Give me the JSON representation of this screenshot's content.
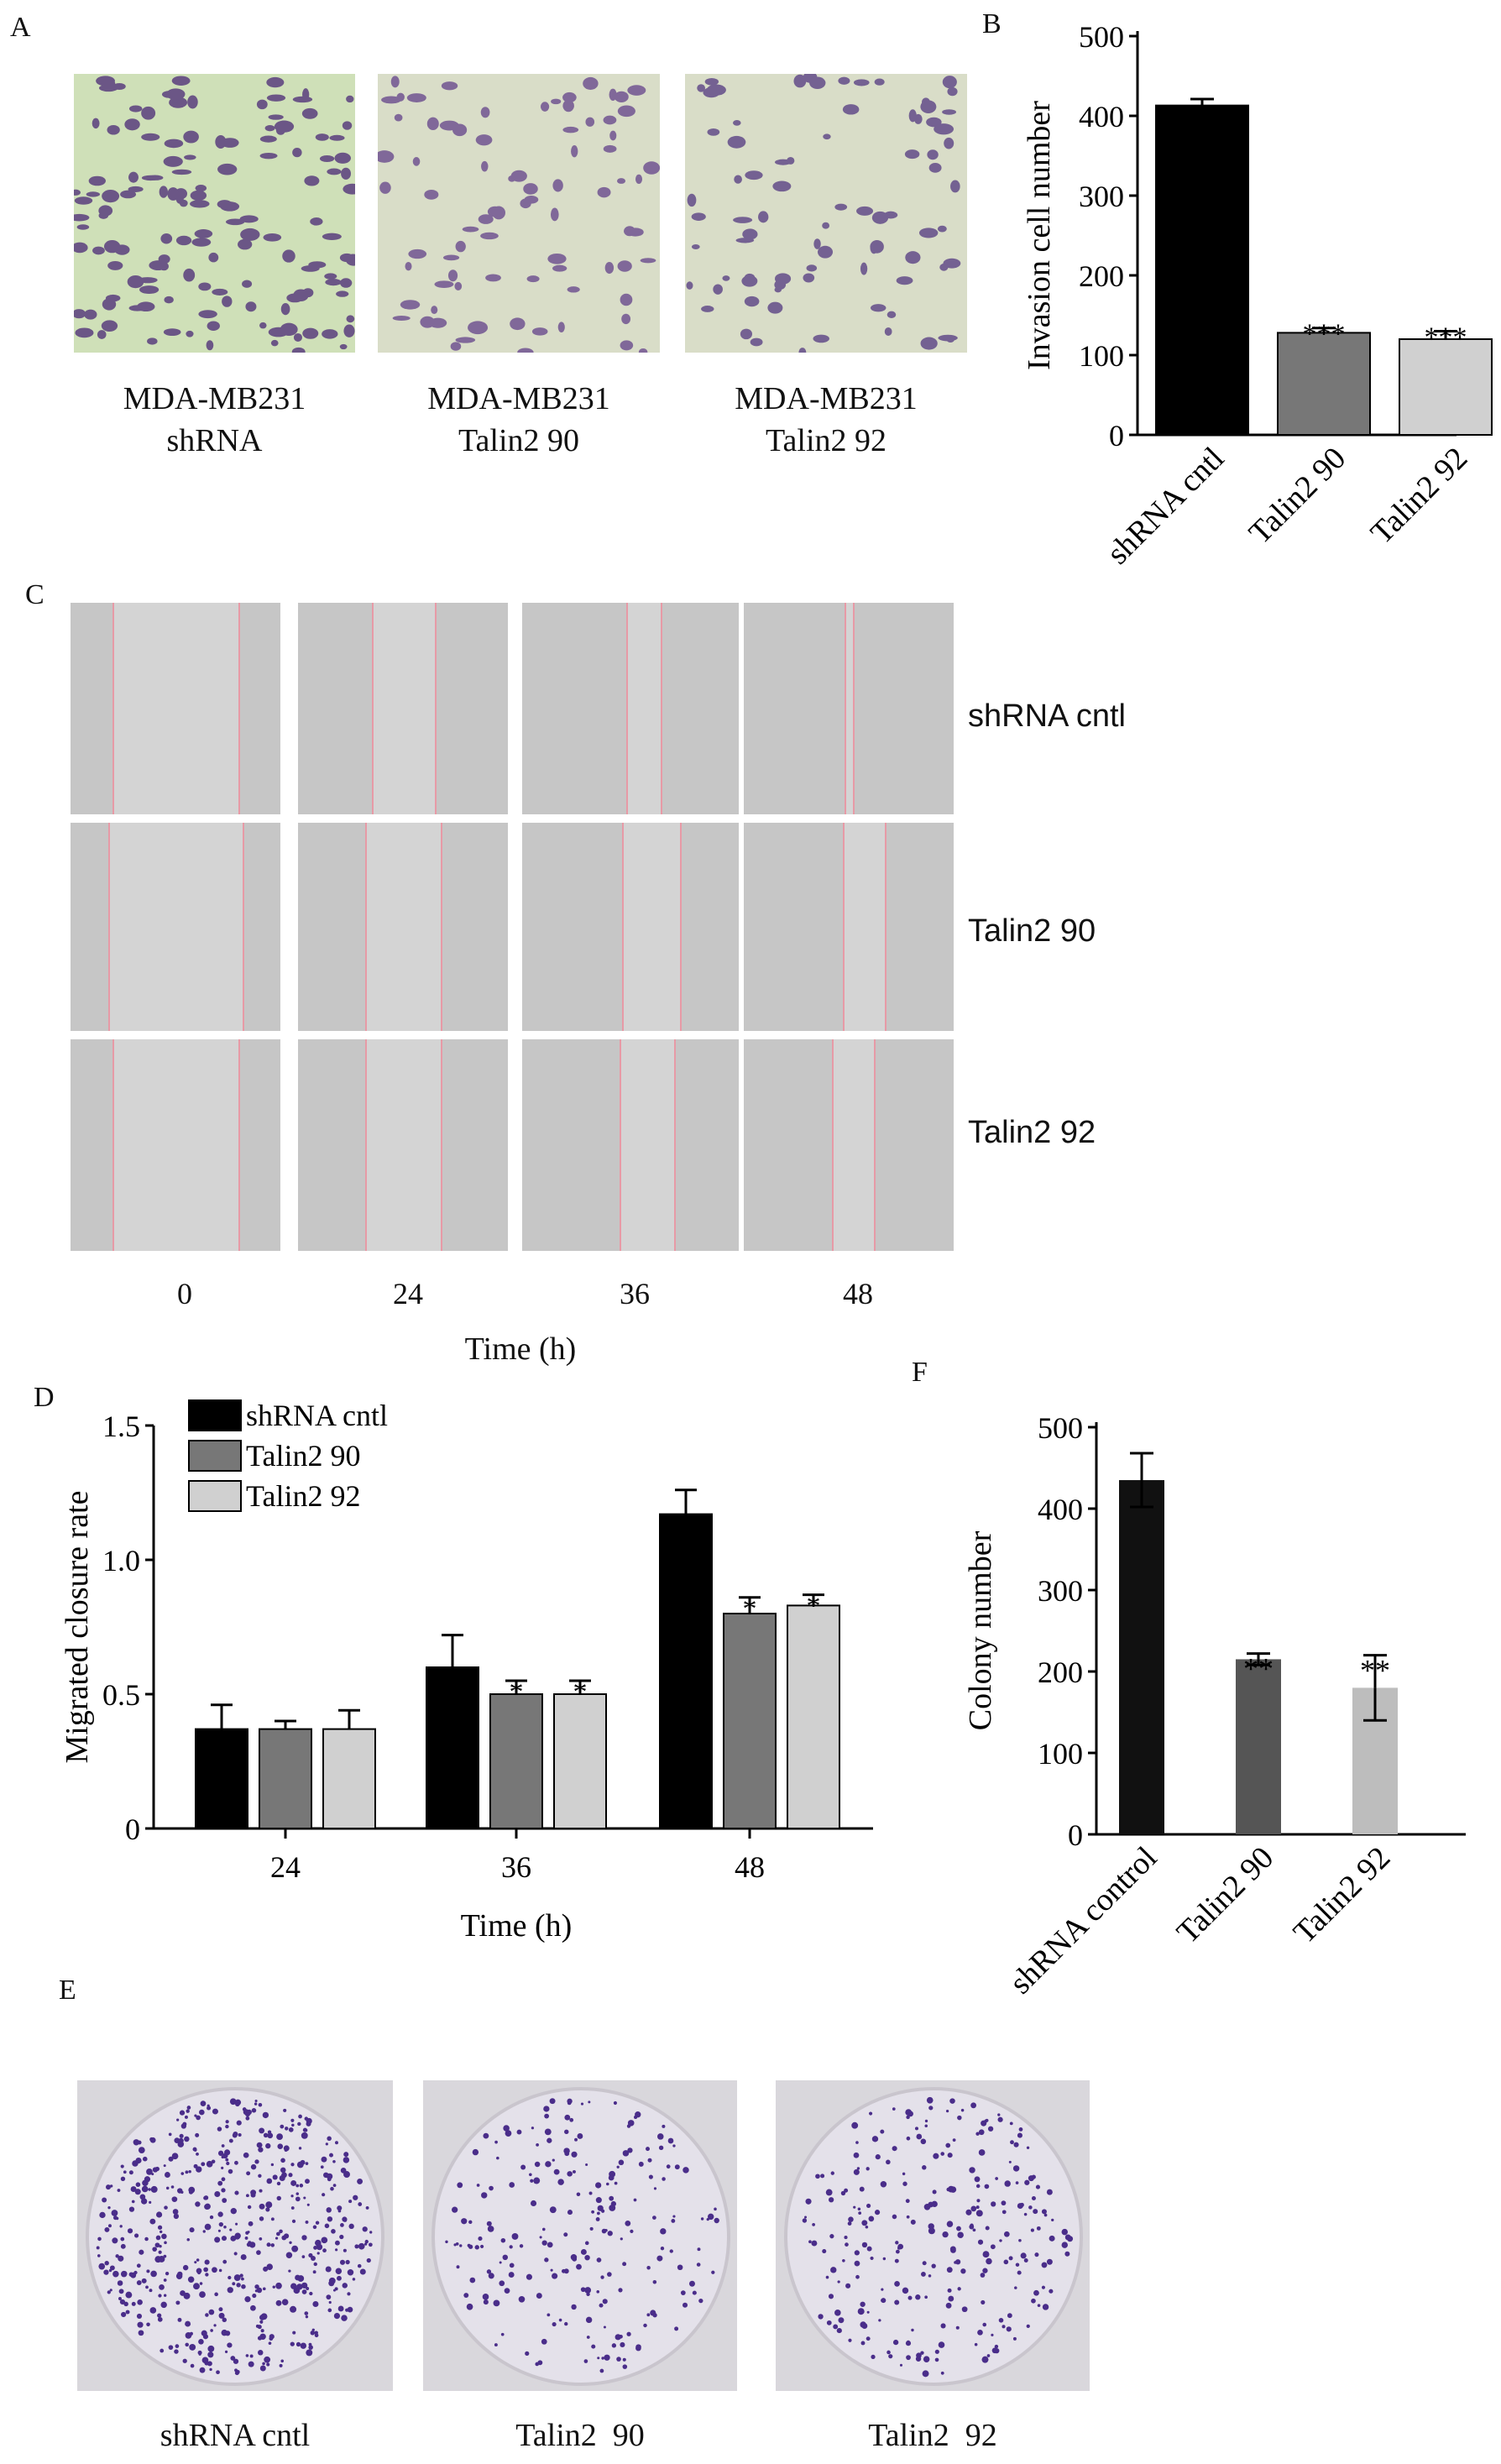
{
  "panels": {
    "A": {
      "letter": "A",
      "images": [
        {
          "line1": "MDA-MB231",
          "line2": "shRNA"
        },
        {
          "line1": "MDA-MB231",
          "line2": "Talin2 90"
        },
        {
          "line1": "MDA-MB231",
          "line2": "Talin2 92"
        }
      ]
    },
    "C": {
      "letter": "C",
      "rows": [
        "shRNA cntl",
        "Talin2 90",
        "Talin2 92"
      ],
      "times": [
        "0",
        "24",
        "36",
        "48"
      ],
      "xlabel": "Time (h)"
    },
    "E": {
      "letter": "E",
      "dishes": [
        "shRNA cntl",
        "Talin2  90",
        "Talin2  92"
      ]
    }
  },
  "chart_data": [
    {
      "panel": "B",
      "letter": "B",
      "type": "bar",
      "categories": [
        "shRNA cntl",
        "Talin2 90",
        "Talin2 92"
      ],
      "values": [
        413,
        128,
        120
      ],
      "errors": [
        8,
        6,
        10
      ],
      "annotations": [
        "",
        "***",
        "***"
      ],
      "colors": [
        "#000000",
        "#777777",
        "#d0d0d0"
      ],
      "ylabel": "Invasion cell number",
      "ylim": [
        0,
        500
      ],
      "yticks": [
        "0",
        "100",
        "200",
        "300",
        "400",
        "500"
      ],
      "grid": false
    },
    {
      "panel": "D",
      "letter": "D",
      "type": "bar",
      "categories": [
        "24",
        "36",
        "48"
      ],
      "series": [
        {
          "name": "shRNA cntl",
          "color": "#000000",
          "values": [
            0.37,
            0.6,
            1.17
          ],
          "errors": [
            0.09,
            0.12,
            0.09
          ],
          "annotations": [
            "",
            "",
            ""
          ]
        },
        {
          "name": "Talin2 90",
          "color": "#777777",
          "values": [
            0.37,
            0.5,
            0.8
          ],
          "errors": [
            0.03,
            0.05,
            0.06
          ],
          "annotations": [
            "",
            "*",
            "*"
          ]
        },
        {
          "name": "Talin2 92",
          "color": "#d0d0d0",
          "values": [
            0.37,
            0.5,
            0.83
          ],
          "errors": [
            0.07,
            0.05,
            0.04
          ],
          "annotations": [
            "",
            "*",
            "*"
          ]
        }
      ],
      "xlabel": "Time (h)",
      "ylabel": "Migrated closure rate",
      "ylim": [
        0,
        1.5
      ],
      "yticks": [
        "0",
        "0.5",
        "1.0",
        "1.5"
      ],
      "legend": "top-left",
      "grid": false
    },
    {
      "panel": "F",
      "letter": "F",
      "type": "bar",
      "categories": [
        "shRNA control",
        "Talin2 90",
        "Talin2 92"
      ],
      "values": [
        435,
        215,
        180
      ],
      "errors": [
        33,
        7,
        40
      ],
      "annotations": [
        "",
        "**",
        "**"
      ],
      "colors": [
        "#111111",
        "#555555",
        "#bdbdbd"
      ],
      "ylabel": "Colony number",
      "ylim": [
        0,
        500
      ],
      "yticks": [
        "0",
        "100",
        "200",
        "300",
        "400",
        "500"
      ],
      "grid": false
    }
  ]
}
